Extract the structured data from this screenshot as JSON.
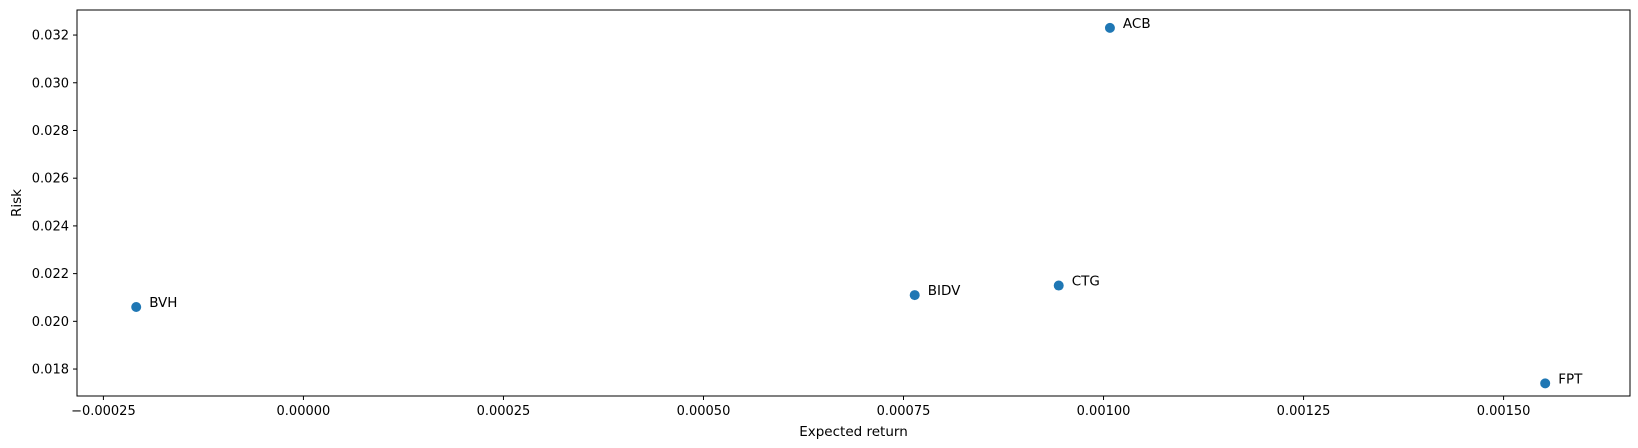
{
  "chart_data": {
    "type": "scatter",
    "xlabel": "Expected return",
    "ylabel": "Risk",
    "xlim": [
      -0.000283,
      0.001658
    ],
    "ylim": [
      0.01687,
      0.03305
    ],
    "xticks": [
      -0.00025,
      0.0,
      0.00025,
      0.0005,
      0.00075,
      0.001,
      0.00125,
      0.0015
    ],
    "xtick_labels": [
      "−0.00025",
      "0.00000",
      "0.00025",
      "0.00050",
      "0.00075",
      "0.00100",
      "0.00125",
      "0.00150"
    ],
    "yticks": [
      0.018,
      0.02,
      0.022,
      0.024,
      0.026,
      0.028,
      0.03,
      0.032
    ],
    "ytick_labels": [
      "0.018",
      "0.020",
      "0.022",
      "0.024",
      "0.026",
      "0.028",
      "0.030",
      "0.032"
    ],
    "grid": false,
    "marker_color": "#1f77b4",
    "points": [
      {
        "label": "BVH",
        "x": -0.000209,
        "y": 0.0206
      },
      {
        "label": "BIDV",
        "x": 0.000764,
        "y": 0.0211
      },
      {
        "label": "CTG",
        "x": 0.000944,
        "y": 0.0215
      },
      {
        "label": "ACB",
        "x": 0.001008,
        "y": 0.0323
      },
      {
        "label": "FPT",
        "x": 0.001552,
        "y": 0.0174
      }
    ]
  }
}
